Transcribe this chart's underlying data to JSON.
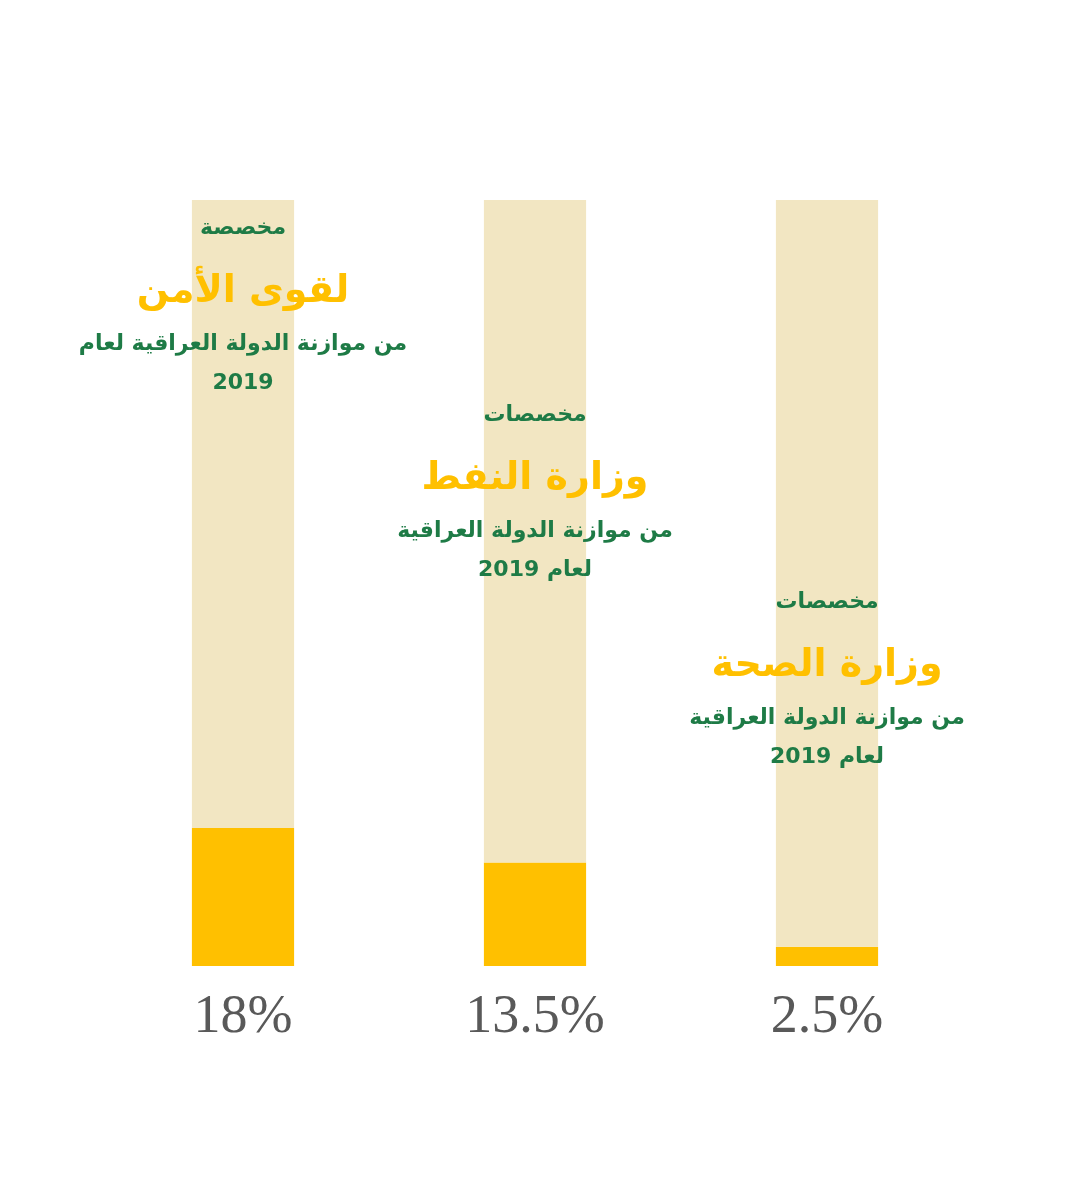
{
  "chart_data": {
    "type": "bar",
    "stacked": true,
    "categories": [
      "لقوى الأمن",
      "وزارة النفط",
      "وزارة الصحة"
    ],
    "series": [
      {
        "color": "#ffc000",
        "values": [
          18,
          13.5,
          2.5
        ],
        "value_labels": [
          "18%",
          "13.5%",
          "2.5%"
        ]
      },
      {
        "color": "#f2e6c2",
        "values": [
          82,
          86.5,
          97.5
        ]
      }
    ],
    "ylim": [
      0,
      100
    ],
    "tick_labels": "x",
    "annotations": [
      "مخصصة",
      "من موازنة الدولة العراقية لعام",
      "2019",
      "مخصصات",
      "من موازنة الدولة العراقية",
      "لعام 2019",
      "مخصصات",
      "من موازنة الدولة العراقية",
      "لعام 2019"
    ]
  }
}
